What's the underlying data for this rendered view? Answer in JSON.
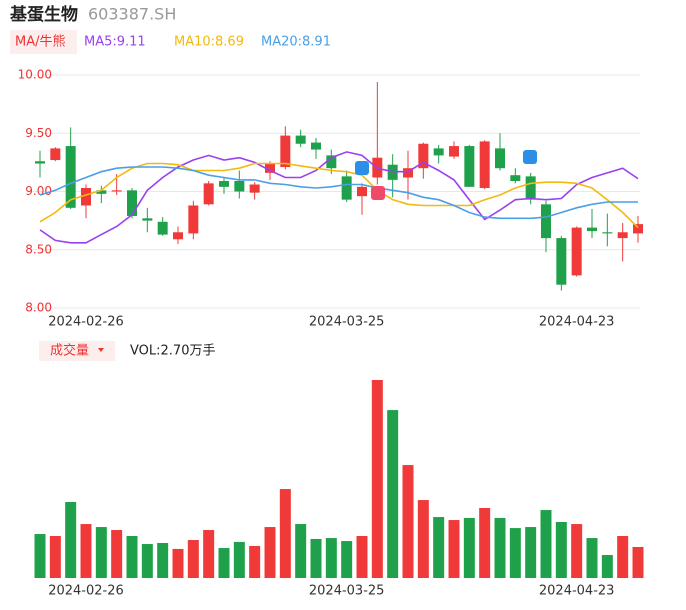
{
  "chart_data": [
    {
      "type": "candlestick",
      "title": "基蛋生物",
      "subtitle": "603387.SH",
      "legend_button": "MA/牛熊",
      "categories": [
        null,
        null,
        null,
        "2024-02-26",
        null,
        null,
        null,
        null,
        null,
        null,
        null,
        null,
        null,
        null,
        null,
        null,
        null,
        null,
        null,
        null,
        "2024-03-25",
        null,
        null,
        null,
        null,
        null,
        null,
        null,
        null,
        null,
        null,
        null,
        null,
        null,
        null,
        "2024-04-23",
        null,
        null,
        null,
        null
      ],
      "open": [
        9.26,
        9.27,
        9.39,
        8.88,
        9.01,
        9.0,
        9.01,
        8.77,
        8.74,
        8.59,
        8.64,
        8.89,
        9.09,
        9.09,
        8.99,
        9.16,
        9.21,
        9.48,
        9.42,
        9.31,
        9.13,
        8.96,
        9.12,
        9.23,
        9.12,
        9.2,
        9.37,
        9.3,
        9.39,
        9.03,
        9.37,
        9.14,
        9.13,
        8.89,
        8.6,
        8.28,
        8.69,
        8.65,
        8.6,
        8.64
      ],
      "high": [
        9.35,
        9.38,
        9.55,
        9.06,
        9.05,
        9.15,
        9.03,
        8.86,
        8.78,
        8.7,
        8.92,
        9.09,
        9.12,
        9.18,
        9.08,
        9.26,
        9.56,
        9.53,
        9.46,
        9.36,
        9.18,
        9.07,
        9.94,
        9.32,
        9.35,
        9.42,
        9.4,
        9.43,
        9.4,
        9.44,
        9.5,
        9.2,
        9.16,
        8.92,
        8.62,
        8.7,
        8.85,
        8.81,
        8.73,
        8.79
      ],
      "low": [
        9.12,
        9.26,
        8.85,
        8.77,
        8.9,
        8.97,
        8.77,
        8.65,
        8.62,
        8.55,
        8.59,
        8.88,
        8.98,
        8.94,
        8.93,
        9.1,
        9.19,
        9.38,
        9.28,
        9.15,
        8.91,
        8.8,
        9.06,
        8.95,
        8.93,
        9.11,
        9.24,
        9.28,
        9.04,
        9.02,
        9.18,
        9.07,
        8.89,
        8.48,
        8.15,
        8.27,
        8.6,
        8.53,
        8.4,
        8.56
      ],
      "close": [
        9.24,
        9.37,
        8.86,
        9.03,
        8.98,
        9.01,
        8.79,
        8.75,
        8.63,
        8.65,
        8.88,
        9.07,
        9.04,
        9.0,
        9.06,
        9.24,
        9.48,
        9.41,
        9.36,
        9.2,
        8.93,
        9.04,
        9.29,
        9.1,
        9.2,
        9.41,
        9.31,
        9.39,
        9.04,
        9.43,
        9.2,
        9.09,
        8.93,
        8.6,
        8.2,
        8.69,
        8.66,
        8.64,
        8.65,
        8.72
      ],
      "up_color": "#f03a3a",
      "down_color": "#1fa04a",
      "series": [
        {
          "name": "MA5:9.11",
          "color": "#9b3ff0",
          "values": [
            8.67,
            8.58,
            8.56,
            8.56,
            8.63,
            8.7,
            8.8,
            9.01,
            9.12,
            9.21,
            9.27,
            9.31,
            9.27,
            9.29,
            9.25,
            9.18,
            9.12,
            9.12,
            9.18,
            9.29,
            9.34,
            9.31,
            9.2,
            9.17,
            9.17,
            9.25,
            9.18,
            9.1,
            8.93,
            8.76,
            8.84,
            8.93,
            8.94,
            8.93,
            8.94,
            9.06,
            9.12,
            9.16,
            9.2,
            9.11
          ]
        },
        {
          "name": "MA10:8.69",
          "color": "#f2b90f",
          "values": [
            8.74,
            8.82,
            8.93,
            8.97,
            9.01,
            9.12,
            9.2,
            9.24,
            9.24,
            9.23,
            9.18,
            9.18,
            9.18,
            9.2,
            9.24,
            9.24,
            9.24,
            9.22,
            9.2,
            9.18,
            9.17,
            9.14,
            9.01,
            8.93,
            8.89,
            8.88,
            8.88,
            8.88,
            8.88,
            8.93,
            8.97,
            9.03,
            9.07,
            9.08,
            9.08,
            9.07,
            9.03,
            8.93,
            8.82,
            8.69
          ]
        },
        {
          "name": "MA20:8.91",
          "color": "#4a9fe8",
          "values": [
            8.97,
            9.01,
            9.07,
            9.12,
            9.17,
            9.2,
            9.21,
            9.21,
            9.21,
            9.2,
            9.18,
            9.14,
            9.12,
            9.1,
            9.1,
            9.07,
            9.06,
            9.04,
            9.03,
            9.04,
            9.06,
            9.06,
            9.03,
            9.01,
            8.99,
            8.95,
            8.93,
            8.88,
            8.82,
            8.78,
            8.77,
            8.77,
            8.77,
            8.78,
            8.82,
            8.86,
            8.89,
            8.91,
            8.91,
            8.91
          ]
        }
      ],
      "ylim": [
        8,
        10
      ],
      "yticks": [
        {
          "value": 10,
          "label": "10.00"
        },
        {
          "value": 9.5,
          "label": "9.50"
        },
        {
          "value": 9,
          "label": "9.00"
        },
        {
          "value": 8.5,
          "label": "8.50"
        },
        {
          "value": 8,
          "label": "8.00"
        }
      ],
      "grid": true
    },
    {
      "type": "bar",
      "legend_button": "成交量",
      "title": "VOL:2.70万手",
      "categories": [
        null,
        null,
        null,
        "2024-02-26",
        null,
        null,
        null,
        null,
        null,
        null,
        null,
        null,
        null,
        null,
        null,
        null,
        null,
        null,
        null,
        null,
        "2024-03-25",
        null,
        null,
        null,
        null,
        null,
        null,
        null,
        null,
        null,
        null,
        null,
        null,
        null,
        null,
        "2024-04-23",
        null,
        null,
        null,
        null
      ],
      "values": [
        3.83,
        3.66,
        6.62,
        4.7,
        4.44,
        4.18,
        3.66,
        2.96,
        3.05,
        2.53,
        3.31,
        4.18,
        2.61,
        3.14,
        2.79,
        4.44,
        7.75,
        4.7,
        3.4,
        3.48,
        3.22,
        3.66,
        17.25,
        14.63,
        9.84,
        6.79,
        5.31,
        5.05,
        5.23,
        6.1,
        5.23,
        4.35,
        4.44,
        5.92,
        4.88,
        4.7,
        3.48,
        2.0,
        3.66,
        2.7
      ]
    }
  ]
}
